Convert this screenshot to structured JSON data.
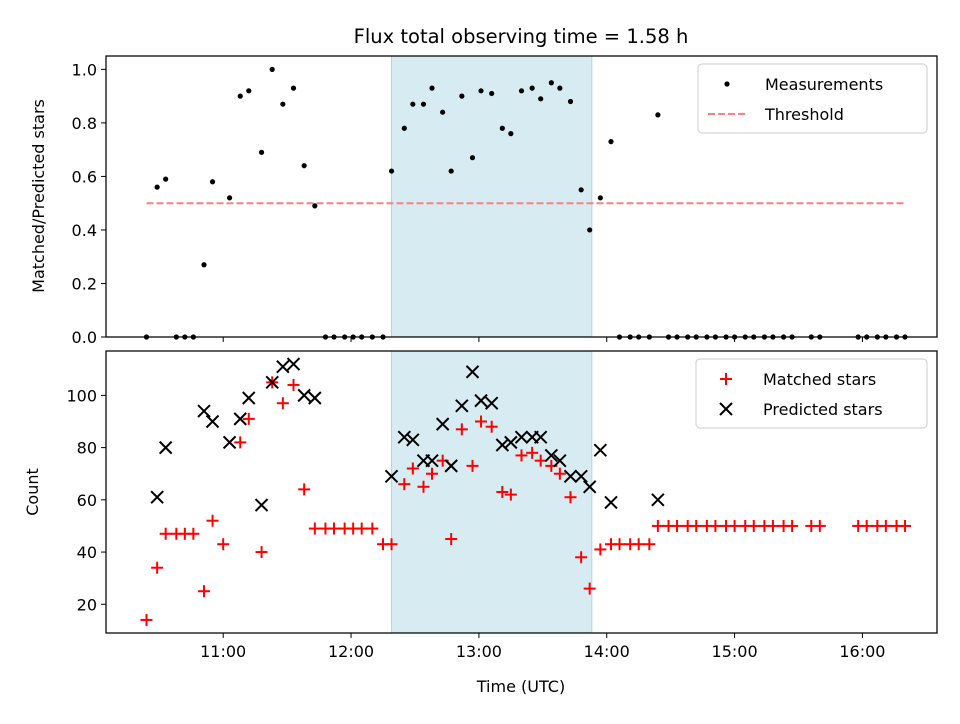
{
  "chart_data": [
    {
      "type": "scatter",
      "title": "Flux total observing time = 1.58 h",
      "xlabel": "",
      "ylabel": "Matched/Predicted stars",
      "ylim": [
        0,
        1.05
      ],
      "yticks": [
        0.0,
        0.2,
        0.4,
        0.6,
        0.8,
        1.0
      ],
      "ytick_labels": [
        "0.0",
        "0.2",
        "0.4",
        "0.6",
        "0.8",
        "1.0"
      ],
      "xlim": [
        "10:05",
        "16:35"
      ],
      "shaded_interval": [
        "12:19",
        "13:53"
      ],
      "shade_color": "#add8e6",
      "grid": false,
      "legend_position": "top-right",
      "legend": [
        "Measurements",
        "Threshold"
      ],
      "threshold": {
        "name": "Threshold",
        "value": 0.5,
        "x_start": "10:24",
        "x_end": "16:20",
        "color": "#ff7f7f",
        "style": "dashed"
      },
      "series": [
        {
          "name": "Measurements",
          "marker": "dot",
          "color": "#000000",
          "points": [
            [
              "10:24",
              0.0
            ],
            [
              "10:29",
              0.56
            ],
            [
              "10:33",
              0.59
            ],
            [
              "10:38",
              0.0
            ],
            [
              "10:42",
              0.0
            ],
            [
              "10:46",
              0.0
            ],
            [
              "10:51",
              0.27
            ],
            [
              "10:55",
              0.58
            ],
            [
              "11:03",
              0.52
            ],
            [
              "11:08",
              0.9
            ],
            [
              "11:12",
              0.92
            ],
            [
              "11:18",
              0.69
            ],
            [
              "11:23",
              1.0
            ],
            [
              "11:28",
              0.87
            ],
            [
              "11:33",
              0.93
            ],
            [
              "11:38",
              0.64
            ],
            [
              "11:43",
              0.49
            ],
            [
              "11:48",
              0.0
            ],
            [
              "11:52",
              0.0
            ],
            [
              "11:57",
              0.0
            ],
            [
              "12:01",
              0.0
            ],
            [
              "12:05",
              0.0
            ],
            [
              "12:10",
              0.0
            ],
            [
              "12:15",
              0.0
            ],
            [
              "12:19",
              0.62
            ],
            [
              "12:25",
              0.78
            ],
            [
              "12:29",
              0.87
            ],
            [
              "12:34",
              0.87
            ],
            [
              "12:38",
              0.93
            ],
            [
              "12:43",
              0.84
            ],
            [
              "12:47",
              0.62
            ],
            [
              "12:52",
              0.9
            ],
            [
              "12:57",
              0.67
            ],
            [
              "13:01",
              0.92
            ],
            [
              "13:06",
              0.91
            ],
            [
              "13:11",
              0.78
            ],
            [
              "13:15",
              0.76
            ],
            [
              "13:20",
              0.92
            ],
            [
              "13:25",
              0.93
            ],
            [
              "13:29",
              0.89
            ],
            [
              "13:34",
              0.95
            ],
            [
              "13:38",
              0.93
            ],
            [
              "13:43",
              0.88
            ],
            [
              "13:48",
              0.55
            ],
            [
              "13:52",
              0.4
            ],
            [
              "13:57",
              0.52
            ],
            [
              "14:02",
              0.73
            ],
            [
              "14:06",
              0.0
            ],
            [
              "14:11",
              0.0
            ],
            [
              "14:15",
              0.0
            ],
            [
              "14:20",
              0.0
            ],
            [
              "14:24",
              0.83
            ],
            [
              "14:29",
              0.0
            ],
            [
              "14:33",
              0.0
            ],
            [
              "14:38",
              0.0
            ],
            [
              "14:42",
              0.0
            ],
            [
              "14:47",
              0.0
            ],
            [
              "14:51",
              0.0
            ],
            [
              "14:56",
              0.0
            ],
            [
              "15:00",
              0.0
            ],
            [
              "15:05",
              0.0
            ],
            [
              "15:09",
              0.0
            ],
            [
              "15:14",
              0.0
            ],
            [
              "15:18",
              0.0
            ],
            [
              "15:23",
              0.0
            ],
            [
              "15:27",
              0.0
            ],
            [
              "15:36",
              0.0
            ],
            [
              "15:40",
              0.0
            ],
            [
              "15:58",
              0.0
            ],
            [
              "16:02",
              0.0
            ],
            [
              "16:07",
              0.0
            ],
            [
              "16:11",
              0.0
            ],
            [
              "16:16",
              0.0
            ],
            [
              "16:20",
              0.0
            ]
          ]
        }
      ]
    },
    {
      "type": "scatter",
      "title": "",
      "xlabel": "Time (UTC)",
      "ylabel": "Count",
      "ylim": [
        9,
        117
      ],
      "yticks": [
        20,
        40,
        60,
        80,
        100
      ],
      "ytick_labels": [
        "20",
        "40",
        "60",
        "80",
        "100"
      ],
      "xlim": [
        "10:05",
        "16:35"
      ],
      "xticks": [
        "11:00",
        "12:00",
        "13:00",
        "14:00",
        "15:00",
        "16:00"
      ],
      "shaded_interval": [
        "12:19",
        "13:53"
      ],
      "shade_color": "#add8e6",
      "grid": false,
      "legend_position": "top-right",
      "legend": [
        "Matched stars",
        "Predicted stars"
      ],
      "series": [
        {
          "name": "Matched stars",
          "marker": "plus",
          "color": "#ff0000",
          "points": [
            [
              "10:24",
              14
            ],
            [
              "10:29",
              34
            ],
            [
              "10:33",
              47
            ],
            [
              "10:38",
              47
            ],
            [
              "10:42",
              47
            ],
            [
              "10:46",
              47
            ],
            [
              "10:51",
              25
            ],
            [
              "10:55",
              52
            ],
            [
              "11:00",
              43
            ],
            [
              "11:08",
              82
            ],
            [
              "11:12",
              91
            ],
            [
              "11:18",
              40
            ],
            [
              "11:23",
              105
            ],
            [
              "11:28",
              97
            ],
            [
              "11:33",
              104
            ],
            [
              "11:38",
              64
            ],
            [
              "11:43",
              49
            ],
            [
              "11:48",
              49
            ],
            [
              "11:52",
              49
            ],
            [
              "11:57",
              49
            ],
            [
              "12:01",
              49
            ],
            [
              "12:05",
              49
            ],
            [
              "12:10",
              49
            ],
            [
              "12:15",
              43
            ],
            [
              "12:19",
              43
            ],
            [
              "12:25",
              66
            ],
            [
              "12:29",
              72
            ],
            [
              "12:34",
              65
            ],
            [
              "12:38",
              70
            ],
            [
              "12:43",
              75
            ],
            [
              "12:47",
              45
            ],
            [
              "12:52",
              87
            ],
            [
              "12:57",
              73
            ],
            [
              "13:01",
              90
            ],
            [
              "13:06",
              88
            ],
            [
              "13:11",
              63
            ],
            [
              "13:15",
              62
            ],
            [
              "13:20",
              77
            ],
            [
              "13:25",
              78
            ],
            [
              "13:29",
              75
            ],
            [
              "13:34",
              73
            ],
            [
              "13:38",
              70
            ],
            [
              "13:43",
              61
            ],
            [
              "13:48",
              38
            ],
            [
              "13:52",
              26
            ],
            [
              "13:57",
              41
            ],
            [
              "14:02",
              43
            ],
            [
              "14:06",
              43
            ],
            [
              "14:11",
              43
            ],
            [
              "14:15",
              43
            ],
            [
              "14:20",
              43
            ],
            [
              "14:24",
              50
            ],
            [
              "14:29",
              50
            ],
            [
              "14:33",
              50
            ],
            [
              "14:38",
              50
            ],
            [
              "14:42",
              50
            ],
            [
              "14:47",
              50
            ],
            [
              "14:51",
              50
            ],
            [
              "14:56",
              50
            ],
            [
              "15:00",
              50
            ],
            [
              "15:05",
              50
            ],
            [
              "15:09",
              50
            ],
            [
              "15:14",
              50
            ],
            [
              "15:18",
              50
            ],
            [
              "15:23",
              50
            ],
            [
              "15:27",
              50
            ],
            [
              "15:36",
              50
            ],
            [
              "15:40",
              50
            ],
            [
              "15:58",
              50
            ],
            [
              "16:02",
              50
            ],
            [
              "16:07",
              50
            ],
            [
              "16:11",
              50
            ],
            [
              "16:16",
              50
            ],
            [
              "16:20",
              50
            ]
          ]
        },
        {
          "name": "Predicted stars",
          "marker": "x",
          "color": "#000000",
          "points": [
            [
              "10:29",
              61
            ],
            [
              "10:33",
              80
            ],
            [
              "10:51",
              94
            ],
            [
              "10:55",
              90
            ],
            [
              "11:03",
              82
            ],
            [
              "11:08",
              91
            ],
            [
              "11:12",
              99
            ],
            [
              "11:18",
              58
            ],
            [
              "11:23",
              105
            ],
            [
              "11:28",
              111
            ],
            [
              "11:33",
              112
            ],
            [
              "11:38",
              100
            ],
            [
              "11:43",
              99
            ],
            [
              "12:19",
              69
            ],
            [
              "12:25",
              84
            ],
            [
              "12:29",
              83
            ],
            [
              "12:34",
              75
            ],
            [
              "12:38",
              75
            ],
            [
              "12:43",
              89
            ],
            [
              "12:47",
              73
            ],
            [
              "12:52",
              96
            ],
            [
              "12:57",
              109
            ],
            [
              "13:01",
              98
            ],
            [
              "13:06",
              97
            ],
            [
              "13:11",
              81
            ],
            [
              "13:15",
              82
            ],
            [
              "13:20",
              84
            ],
            [
              "13:25",
              84
            ],
            [
              "13:29",
              84
            ],
            [
              "13:34",
              77
            ],
            [
              "13:38",
              75
            ],
            [
              "13:43",
              69
            ],
            [
              "13:48",
              69
            ],
            [
              "13:52",
              65
            ],
            [
              "13:57",
              79
            ],
            [
              "14:02",
              59
            ],
            [
              "14:24",
              60
            ]
          ]
        }
      ]
    }
  ]
}
